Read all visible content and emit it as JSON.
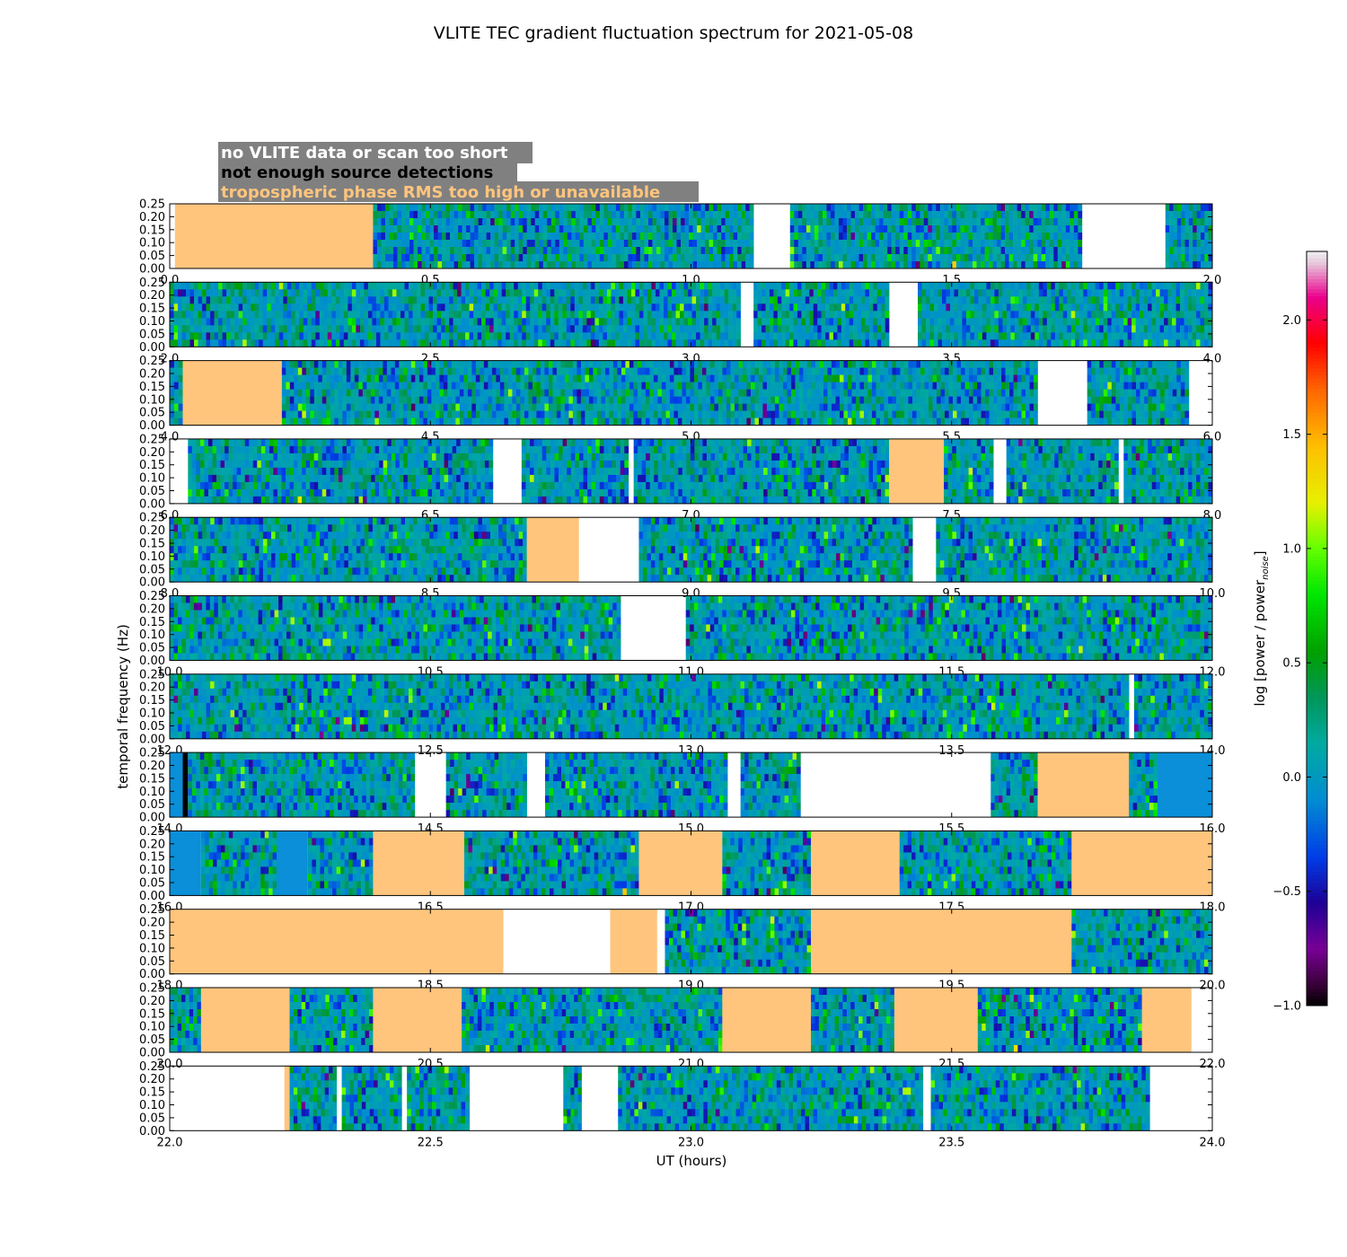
{
  "chart_data": {
    "type": "heatmap",
    "title": "VLITE TEC gradient fluctuation spectrum for 2021-05-08",
    "xlabel": "UT (hours)",
    "ylabel": "temporal frequency (Hz)",
    "ylim": [
      0,
      0.25
    ],
    "ytick_labels": [
      "0.00",
      "0.05",
      "0.10",
      "0.15",
      "0.20",
      "0.25"
    ],
    "colorbar": {
      "label": "log [power / power",
      "label_sub": "noise",
      "label_end": "]",
      "range": [
        -1.0,
        2.3
      ],
      "tick_values": [
        -1.0,
        -0.5,
        0.0,
        0.5,
        1.0,
        1.5,
        2.0
      ],
      "tick_labels": [
        "−1.0",
        "−0.5",
        "0.0",
        "0.5",
        "1.0",
        "1.5",
        "2.0"
      ]
    },
    "legend": [
      {
        "text": "no VLITE data or scan too short",
        "color": "#ffffff"
      },
      {
        "text": "not enough source detections",
        "color": "#000000"
      },
      {
        "text": "tropospheric phase RMS too high or unavailable",
        "color": "#ffc57d"
      }
    ],
    "legend_box_color": "#808080",
    "status_colors": {
      "no_data": "#ffffff",
      "few_detections": "#000000",
      "tropo_high": "#ffc57d",
      "flat": "#0a8fd8"
    },
    "rows": [
      {
        "xrange": [
          0,
          2
        ],
        "tick_labels": [
          "0.0",
          "0.5",
          "1.0",
          "1.5",
          "2.0"
        ],
        "segments": [
          [
            "empty",
            0,
            0.01
          ],
          [
            "tropo",
            0.01,
            0.39
          ],
          [
            "data",
            0.39,
            1.12
          ],
          [
            "empty",
            1.12,
            1.19
          ],
          [
            "data",
            1.19,
            1.75
          ],
          [
            "empty",
            1.75,
            1.91
          ],
          [
            "data",
            1.91,
            2.0
          ]
        ]
      },
      {
        "xrange": [
          2,
          4
        ],
        "tick_labels": [
          "2.0",
          "2.5",
          "3.0",
          "3.5",
          "4.0"
        ],
        "segments": [
          [
            "data",
            2.0,
            3.095
          ],
          [
            "empty",
            3.095,
            3.12
          ],
          [
            "data",
            3.12,
            3.38
          ],
          [
            "empty",
            3.38,
            3.435
          ],
          [
            "data",
            3.435,
            4.0
          ]
        ]
      },
      {
        "xrange": [
          4,
          6
        ],
        "tick_labels": [
          "4.0",
          "4.5",
          "5.0",
          "5.5",
          "6.0"
        ],
        "segments": [
          [
            "data",
            4.0,
            4.025
          ],
          [
            "tropo",
            4.025,
            4.215
          ],
          [
            "data",
            4.215,
            5.665
          ],
          [
            "empty",
            5.665,
            5.76
          ],
          [
            "data",
            5.76,
            5.955
          ],
          [
            "empty",
            5.955,
            6.0
          ]
        ]
      },
      {
        "xrange": [
          6,
          8
        ],
        "tick_labels": [
          "6.0",
          "6.5",
          "7.0",
          "7.5",
          "8.0"
        ],
        "segments": [
          [
            "empty",
            6.0,
            6.035
          ],
          [
            "data",
            6.035,
            6.62
          ],
          [
            "empty",
            6.62,
            6.675
          ],
          [
            "data",
            6.675,
            6.88
          ],
          [
            "empty",
            6.88,
            6.89
          ],
          [
            "data",
            6.89,
            7.38
          ],
          [
            "tropo",
            7.38,
            7.485
          ],
          [
            "data",
            7.485,
            7.58
          ],
          [
            "empty",
            7.58,
            7.605
          ],
          [
            "data",
            7.605,
            7.82
          ],
          [
            "empty",
            7.82,
            7.83
          ],
          [
            "data",
            7.83,
            8.0
          ]
        ]
      },
      {
        "xrange": [
          8,
          10
        ],
        "tick_labels": [
          "8.0",
          "8.5",
          "9.0",
          "9.5",
          "10.0"
        ],
        "segments": [
          [
            "data",
            8.0,
            8.685
          ],
          [
            "tropo",
            8.685,
            8.785
          ],
          [
            "empty",
            8.785,
            8.9
          ],
          [
            "data",
            8.9,
            9.425
          ],
          [
            "empty",
            9.425,
            9.47
          ],
          [
            "data",
            9.47,
            10.0
          ]
        ]
      },
      {
        "xrange": [
          10,
          12
        ],
        "tick_labels": [
          "10.0",
          "10.5",
          "11.0",
          "11.5",
          "12.0"
        ],
        "segments": [
          [
            "data",
            10.0,
            10.865
          ],
          [
            "empty",
            10.865,
            10.99
          ],
          [
            "data",
            10.99,
            12.0
          ]
        ]
      },
      {
        "xrange": [
          12,
          14
        ],
        "tick_labels": [
          "12.0",
          "12.5",
          "13.0",
          "13.5",
          "14.0"
        ],
        "segments": [
          [
            "data",
            12.0,
            13.84
          ],
          [
            "empty",
            13.84,
            13.85
          ],
          [
            "data",
            13.85,
            14.0
          ]
        ]
      },
      {
        "xrange": [
          14,
          16
        ],
        "tick_labels": [
          "14.0",
          "14.5",
          "15.0",
          "15.5",
          "16.0"
        ],
        "segments": [
          [
            "flat",
            14.0,
            14.025
          ],
          [
            "black",
            14.025,
            14.035
          ],
          [
            "data",
            14.035,
            14.47
          ],
          [
            "empty",
            14.47,
            14.53
          ],
          [
            "data",
            14.53,
            14.685
          ],
          [
            "empty",
            14.685,
            14.72
          ],
          [
            "data",
            14.72,
            15.07
          ],
          [
            "empty",
            15.07,
            15.095
          ],
          [
            "data",
            15.095,
            15.21
          ],
          [
            "empty",
            15.21,
            15.575
          ],
          [
            "data",
            15.575,
            15.665
          ],
          [
            "tropo",
            15.665,
            15.84
          ],
          [
            "data",
            15.84,
            15.895
          ],
          [
            "flat",
            15.895,
            16.0
          ]
        ]
      },
      {
        "xrange": [
          16,
          18
        ],
        "tick_labels": [
          "16.0",
          "16.5",
          "17.0",
          "17.5",
          "18.0"
        ],
        "segments": [
          [
            "flat",
            16.0,
            16.06
          ],
          [
            "data",
            16.06,
            16.205
          ],
          [
            "flat",
            16.205,
            16.265
          ],
          [
            "data",
            16.265,
            16.39
          ],
          [
            "tropo",
            16.39,
            16.565
          ],
          [
            "data",
            16.565,
            16.9
          ],
          [
            "tropo",
            16.9,
            17.06
          ],
          [
            "data",
            17.06,
            17.23
          ],
          [
            "tropo",
            17.23,
            17.4
          ],
          [
            "data",
            17.4,
            17.73
          ],
          [
            "tropo",
            17.73,
            18.0
          ]
        ]
      },
      {
        "xrange": [
          18,
          20
        ],
        "tick_labels": [
          "18.0",
          "18.5",
          "19.0",
          "19.5",
          "20.0"
        ],
        "segments": [
          [
            "tropo",
            18.0,
            18.64
          ],
          [
            "empty",
            18.64,
            18.845
          ],
          [
            "tropo",
            18.845,
            18.935
          ],
          [
            "empty",
            18.935,
            18.95
          ],
          [
            "data",
            18.95,
            19.23
          ],
          [
            "tropo",
            19.23,
            19.73
          ],
          [
            "data",
            19.73,
            20.0
          ]
        ]
      },
      {
        "xrange": [
          20,
          22
        ],
        "tick_labels": [
          "20.0",
          "20.5",
          "21.0",
          "21.5",
          "22.0"
        ],
        "segments": [
          [
            "data",
            20.0,
            20.06
          ],
          [
            "tropo",
            20.06,
            20.23
          ],
          [
            "data",
            20.23,
            20.39
          ],
          [
            "tropo",
            20.39,
            20.56
          ],
          [
            "data",
            20.56,
            21.06
          ],
          [
            "tropo",
            21.06,
            21.23
          ],
          [
            "data",
            21.23,
            21.39
          ],
          [
            "tropo",
            21.39,
            21.55
          ],
          [
            "data",
            21.55,
            21.865
          ],
          [
            "tropo",
            21.865,
            21.96
          ],
          [
            "empty",
            21.96,
            22.0
          ]
        ]
      },
      {
        "xrange": [
          22,
          24
        ],
        "tick_labels": [
          "22.0",
          "22.5",
          "23.0",
          "23.5",
          "24.0"
        ],
        "segments": [
          [
            "empty",
            22.0,
            22.22
          ],
          [
            "tropo",
            22.22,
            22.23
          ],
          [
            "data",
            22.23,
            22.32
          ],
          [
            "empty",
            22.32,
            22.33
          ],
          [
            "data",
            22.33,
            22.445
          ],
          [
            "empty",
            22.445,
            22.455
          ],
          [
            "data",
            22.455,
            22.575
          ],
          [
            "empty",
            22.575,
            22.755
          ],
          [
            "data",
            22.755,
            22.79
          ],
          [
            "empty",
            22.79,
            22.86
          ],
          [
            "data",
            22.86,
            23.445
          ],
          [
            "empty",
            23.445,
            23.46
          ],
          [
            "data",
            23.46,
            23.88
          ],
          [
            "empty",
            23.88,
            24.0
          ]
        ]
      }
    ]
  }
}
